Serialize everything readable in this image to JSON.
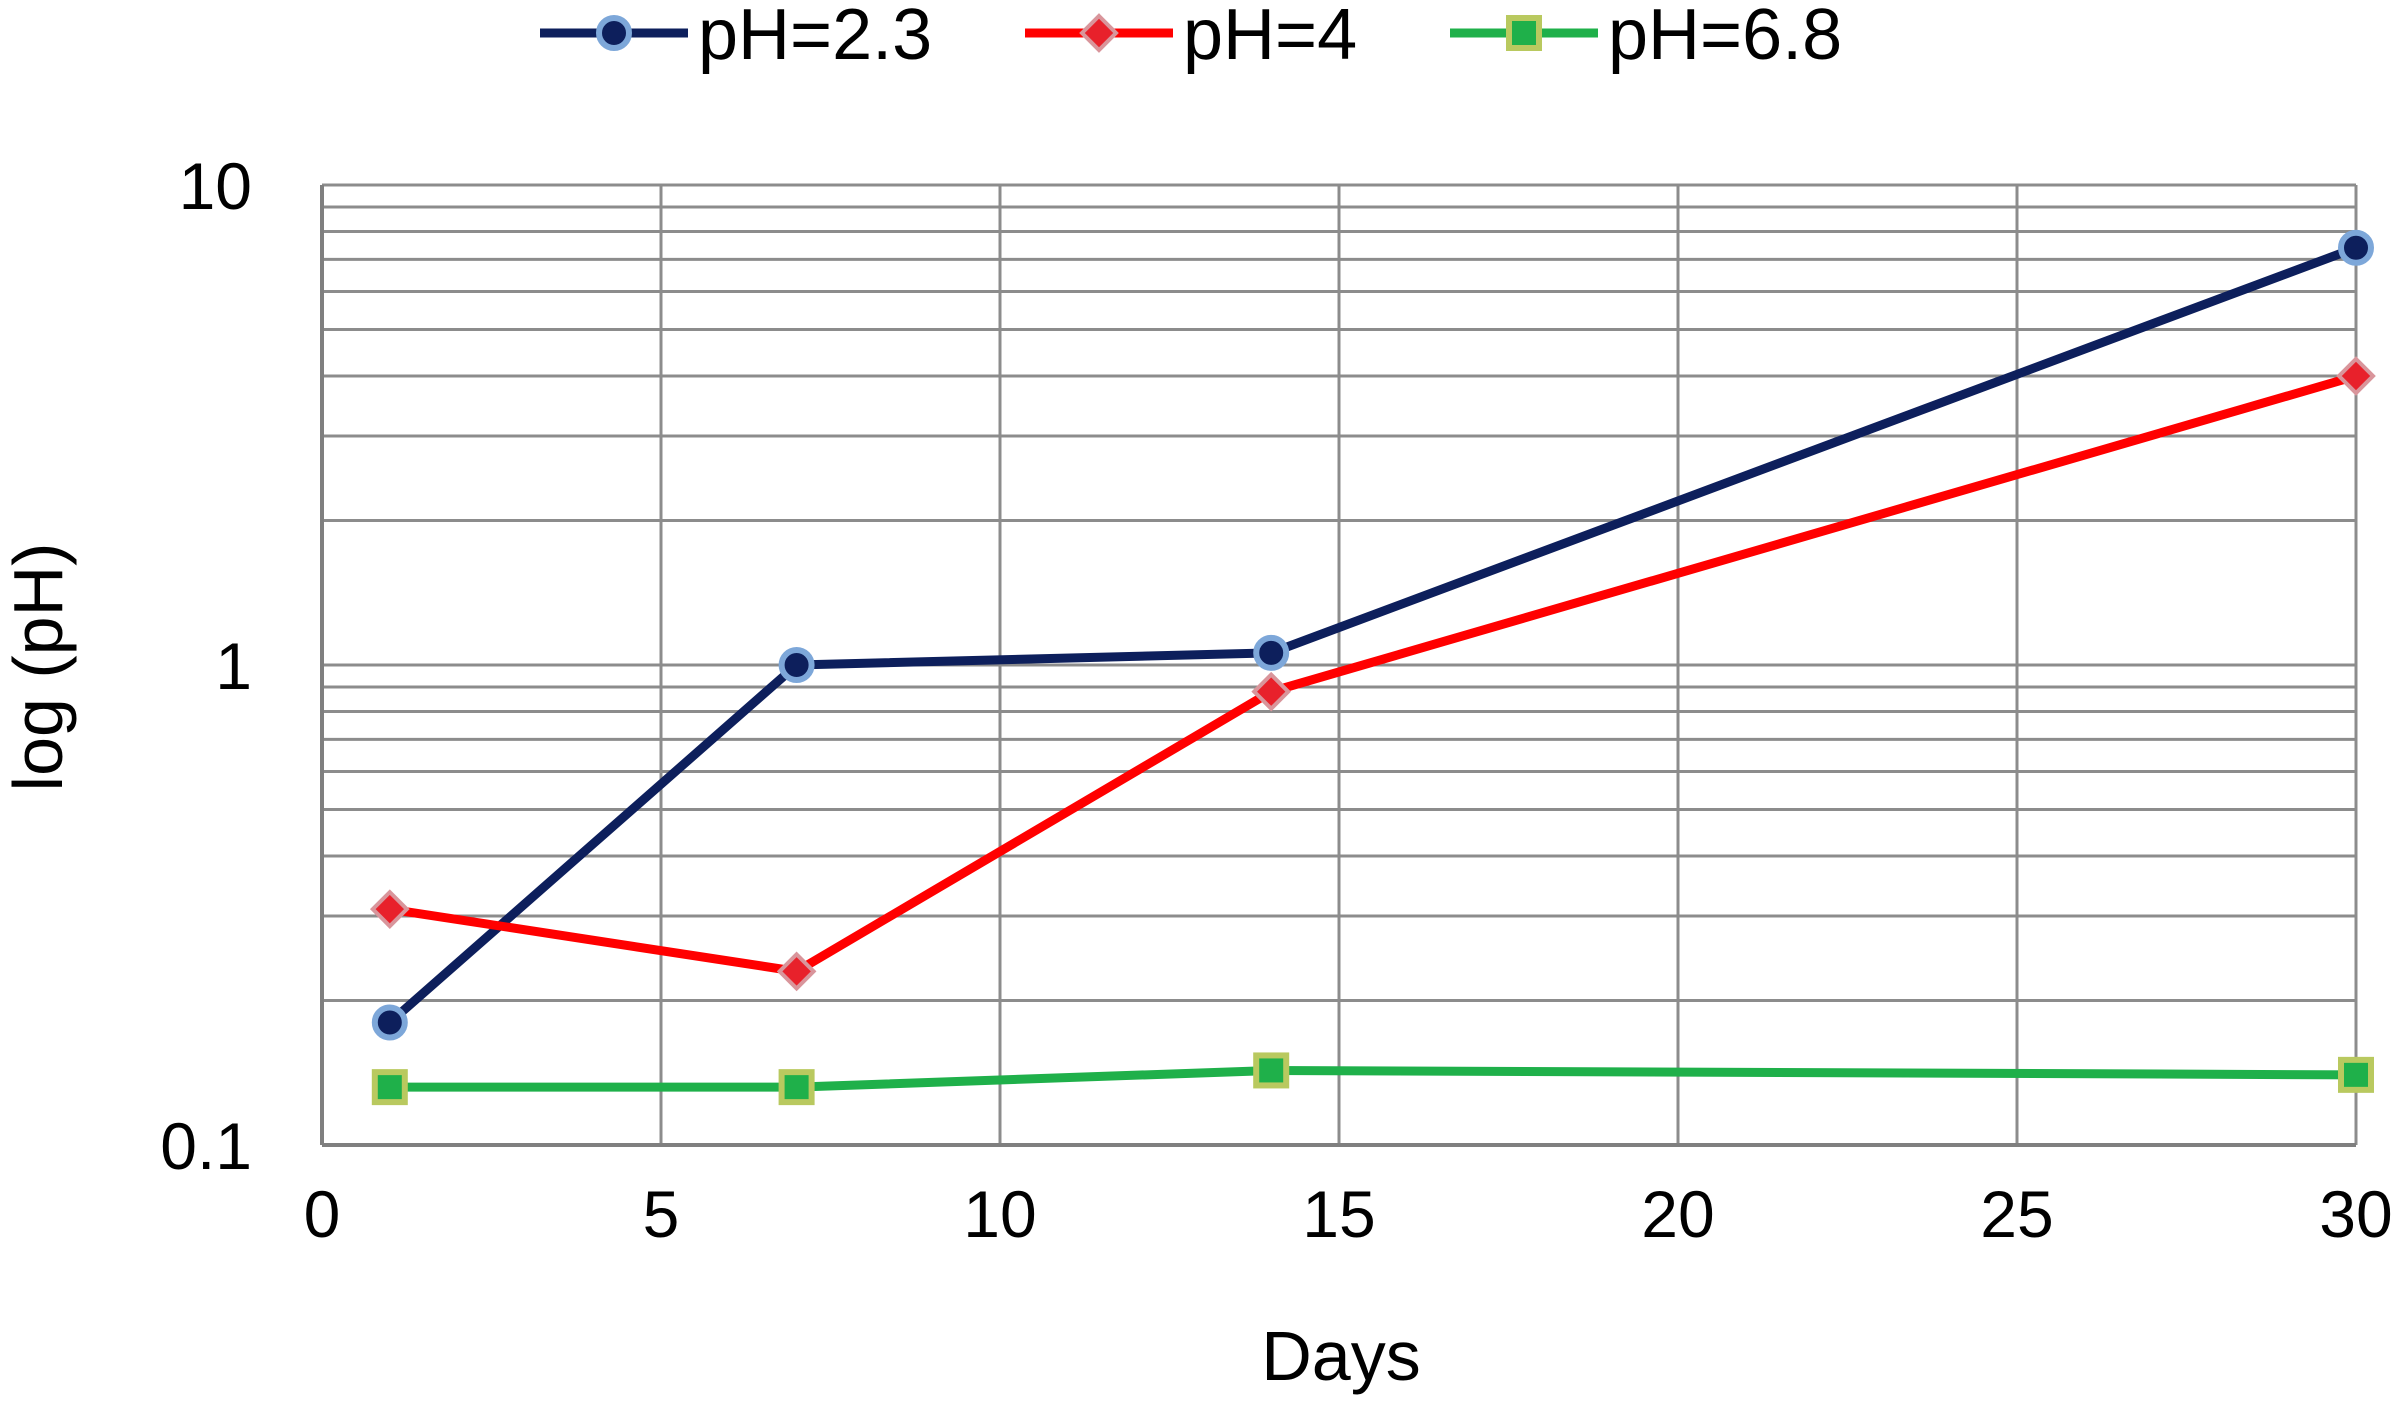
{
  "chart_data": {
    "type": "line",
    "title": "",
    "xlabel": "Days",
    "ylabel": "log (pH)",
    "xlim": [
      0,
      30
    ],
    "ylim": [
      0.1,
      10
    ],
    "yscale": "log",
    "xticks": [
      0,
      5,
      10,
      15,
      20,
      25,
      30
    ],
    "xtick_labels": [
      "0",
      "5",
      "10",
      "15",
      "20",
      "25",
      "30"
    ],
    "yticks": [
      0.1,
      1,
      10
    ],
    "ytick_labels": [
      "0.1",
      "1",
      "10"
    ],
    "grid": true,
    "legend_position": "top",
    "series": [
      {
        "name": "pH=2.3",
        "color": "#0d1f5c",
        "marker": "circle",
        "marker_fill": "#0d1f5c",
        "marker_edge": "#7da7d9",
        "x": [
          1,
          7,
          14,
          30
        ],
        "y": [
          0.18,
          1.0,
          1.06,
          7.4
        ]
      },
      {
        "name": "pH=4",
        "color": "#ff0000",
        "marker": "diamond",
        "marker_fill": "#e8212b",
        "marker_edge": "#d9959b",
        "x": [
          1,
          7,
          14,
          30
        ],
        "y": [
          0.31,
          0.23,
          0.88,
          4.0
        ]
      },
      {
        "name": "pH=6.8",
        "color": "#1fb04a",
        "marker": "square",
        "marker_fill": "#1fb04a",
        "marker_edge": "#b9c95f",
        "x": [
          1,
          7,
          14,
          30
        ],
        "y": [
          0.132,
          0.132,
          0.143,
          0.14
        ]
      }
    ]
  }
}
